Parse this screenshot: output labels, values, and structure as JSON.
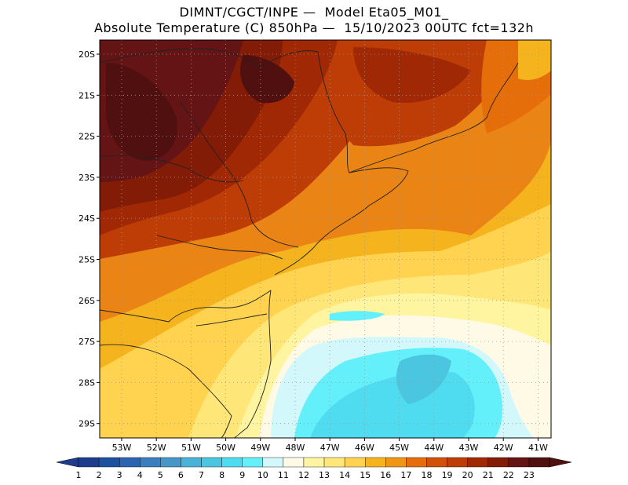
{
  "title_line1": "DIMNT/CGCT/INPE —  Model Eta05_M01_",
  "title_line2": "Absolute Temperature (C) 850hPa —  15/10/2023 00UTC fct=132h",
  "lat_labels": [
    "20S",
    "21S",
    "22S",
    "23S",
    "24S",
    "25S",
    "26S",
    "27S",
    "28S",
    "29S"
  ],
  "lon_labels": [
    "53W",
    "52W",
    "51W",
    "50W",
    "49W",
    "48W",
    "47W",
    "46W",
    "45W",
    "44W",
    "43W",
    "42W",
    "41W"
  ],
  "colorbar": {
    "labels": [
      "1",
      "2",
      "3",
      "4",
      "5",
      "6",
      "7",
      "8",
      "9",
      "10",
      "11",
      "12",
      "13",
      "14",
      "15",
      "16",
      "17",
      "18",
      "19",
      "20",
      "21",
      "22",
      "23"
    ],
    "colors": [
      "#1e3c8c",
      "#1e50a0",
      "#2b64b0",
      "#3a7ec0",
      "#4696c8",
      "#4ab2d8",
      "#4ac6e0",
      "#50dcf0",
      "#64f0fa",
      "#d2f8fc",
      "#fffae6",
      "#fff5a0",
      "#ffe678",
      "#ffd250",
      "#f5b41e",
      "#f09614",
      "#e66e0a",
      "#d25008",
      "#be3c06",
      "#a02804",
      "#821c06",
      "#641414",
      "#501010"
    ],
    "under_color": "#1e3c8c",
    "over_color": "#501010"
  }
}
